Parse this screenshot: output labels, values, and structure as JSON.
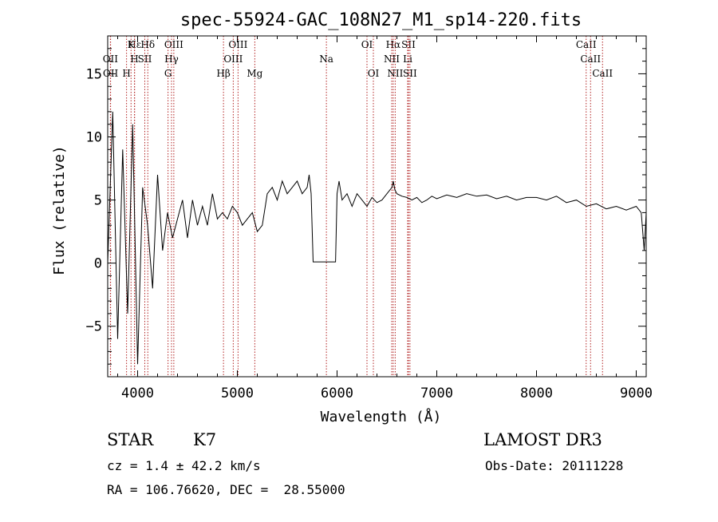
{
  "chart_data": {
    "type": "line",
    "title": "spec-55924-GAC_108N27_M1_sp14-220.fits",
    "xlabel": "Wavelength (Å)",
    "ylabel": "Flux (relative)",
    "xlim": [
      3700,
      9100
    ],
    "ylim": [
      -9,
      18
    ],
    "x_ticks": [
      4000,
      5000,
      6000,
      7000,
      8000,
      9000
    ],
    "y_ticks": [
      -5,
      0,
      5,
      10,
      15
    ],
    "series": [
      {
        "name": "flux",
        "color": "#000000",
        "x": [
          3700,
          3750,
          3800,
          3850,
          3900,
          3950,
          4000,
          4050,
          4100,
          4150,
          4200,
          4250,
          4300,
          4350,
          4400,
          4450,
          4500,
          4550,
          4600,
          4650,
          4700,
          4750,
          4800,
          4850,
          4900,
          4950,
          5000,
          5050,
          5100,
          5150,
          5200,
          5250,
          5300,
          5350,
          5400,
          5450,
          5500,
          5550,
          5600,
          5650,
          5700,
          5720,
          5740,
          5760,
          5800,
          5850,
          5900,
          5950,
          5985,
          6000,
          6020,
          6050,
          6100,
          6150,
          6200,
          6250,
          6300,
          6350,
          6400,
          6450,
          6500,
          6550,
          6563,
          6580,
          6600,
          6650,
          6700,
          6750,
          6800,
          6850,
          6900,
          6950,
          7000,
          7100,
          7200,
          7300,
          7400,
          7500,
          7600,
          7700,
          7800,
          7900,
          8000,
          8100,
          8200,
          8300,
          8400,
          8500,
          8600,
          8700,
          8800,
          8900,
          9000,
          9050,
          9080,
          9100
        ],
        "y": [
          0.0,
          12.0,
          -6.0,
          9.0,
          -4.0,
          11.0,
          -8.0,
          6.0,
          3.0,
          -2.0,
          7.0,
          1.0,
          4.0,
          2.0,
          3.5,
          5.0,
          2.0,
          5.0,
          3.0,
          4.5,
          3.0,
          5.5,
          3.5,
          4.0,
          3.5,
          4.5,
          4.0,
          3.0,
          3.5,
          4.0,
          2.5,
          3.0,
          5.5,
          6.0,
          5.0,
          6.5,
          5.5,
          6.0,
          6.5,
          5.5,
          6.0,
          7.0,
          5.5,
          0.1,
          0.1,
          0.1,
          0.1,
          0.1,
          0.1,
          5.5,
          6.5,
          5.0,
          5.5,
          4.5,
          5.5,
          5.0,
          4.5,
          5.2,
          4.8,
          5.0,
          5.5,
          6.0,
          6.5,
          5.8,
          5.5,
          5.3,
          5.2,
          5.0,
          5.2,
          4.8,
          5.0,
          5.3,
          5.1,
          5.4,
          5.2,
          5.5,
          5.3,
          5.4,
          5.1,
          5.3,
          5.0,
          5.2,
          5.2,
          5.0,
          5.3,
          4.8,
          5.0,
          4.5,
          4.7,
          4.3,
          4.5,
          4.2,
          4.5,
          4.0,
          1.0,
          4.0
        ]
      }
    ],
    "line_annotations": [
      {
        "label": "Hε",
        "x": 3970,
        "row": 0
      },
      {
        "label": "K",
        "x": 3934,
        "row": 0
      },
      {
        "label": "Hδ",
        "x": 4102,
        "row": 0
      },
      {
        "label": "OIII",
        "x": 4363,
        "row": 0
      },
      {
        "label": "OIII",
        "x": 5007,
        "row": 0
      },
      {
        "label": "OI",
        "x": 6300,
        "row": 0
      },
      {
        "label": "Hα",
        "x": 6563,
        "row": 0
      },
      {
        "label": "SII",
        "x": 6716,
        "row": 0
      },
      {
        "label": "CaII",
        "x": 8498,
        "row": 0
      },
      {
        "label": "OII",
        "x": 3727,
        "row": 1
      },
      {
        "label": "H",
        "x": 3968,
        "row": 1
      },
      {
        "label": "SII",
        "x": 4072,
        "row": 1
      },
      {
        "label": "Hγ",
        "x": 4340,
        "row": 1
      },
      {
        "label": "OIII",
        "x": 4959,
        "row": 1
      },
      {
        "label": "Na",
        "x": 5893,
        "row": 1
      },
      {
        "label": "NII",
        "x": 6548,
        "row": 1
      },
      {
        "label": "Li",
        "x": 6708,
        "row": 1
      },
      {
        "label": "CaII",
        "x": 8542,
        "row": 1
      },
      {
        "label": "OII",
        "x": 3729,
        "row": 2
      },
      {
        "label": "H",
        "x": 3889,
        "row": 2
      },
      {
        "label": "G",
        "x": 4305,
        "row": 2
      },
      {
        "label": "Hβ",
        "x": 4861,
        "row": 2
      },
      {
        "label": "Mg",
        "x": 5175,
        "row": 2
      },
      {
        "label": "OI",
        "x": 6364,
        "row": 2
      },
      {
        "label": "NII",
        "x": 6583,
        "row": 2
      },
      {
        "label": "SII",
        "x": 6731,
        "row": 2
      },
      {
        "label": "CaII",
        "x": 8662,
        "row": 2
      }
    ]
  },
  "info": {
    "class": "STAR",
    "subclass": "K7",
    "survey": "LAMOST DR3",
    "cz": "cz = 1.4 ± 42.2 km/s",
    "obs_date": "Obs-Date: 20111228",
    "coords": "RA = 106.76620, DEC =  28.55000"
  }
}
